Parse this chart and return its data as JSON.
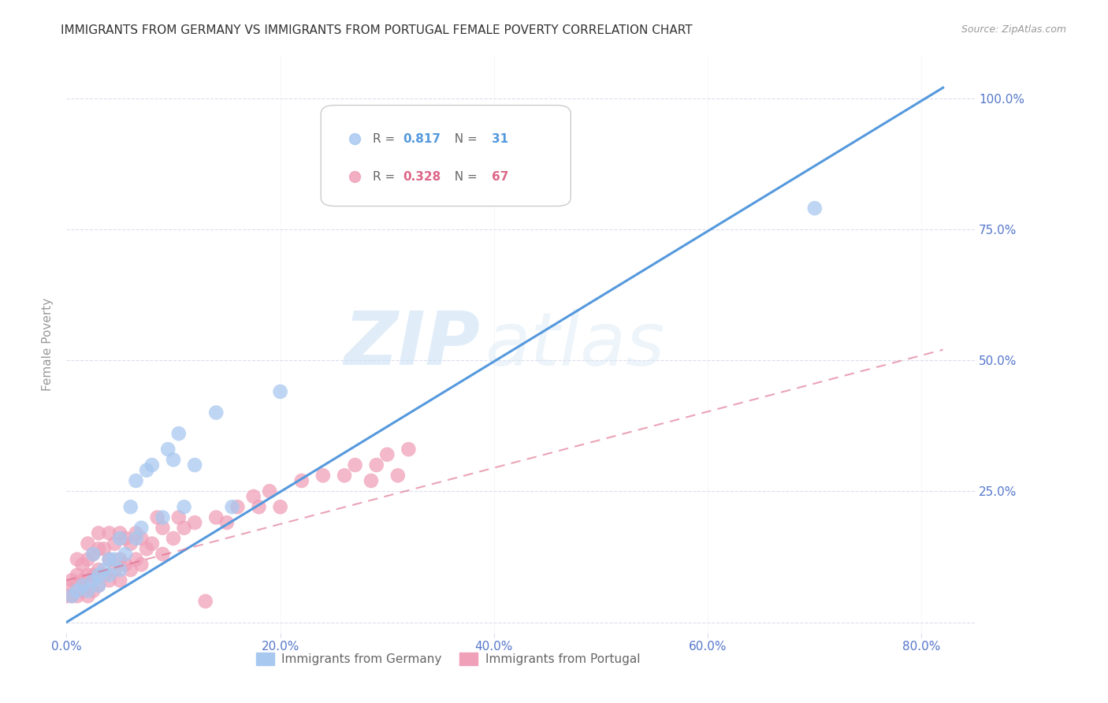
{
  "title": "IMMIGRANTS FROM GERMANY VS IMMIGRANTS FROM PORTUGAL FEMALE POVERTY CORRELATION CHART",
  "source": "Source: ZipAtlas.com",
  "ylabel_label": "Female Poverty",
  "xlim": [
    0.0,
    0.85
  ],
  "ylim": [
    -0.02,
    1.08
  ],
  "legend1_R": "0.817",
  "legend1_N": "31",
  "legend2_R": "0.328",
  "legend2_N": "67",
  "germany_color": "#a8c8f0",
  "portugal_color": "#f0a0b8",
  "germany_line_color": "#5599dd",
  "portugal_line_color": "#dd6688",
  "watermark_zip": "ZIP",
  "watermark_atlas": "atlas",
  "background_color": "#ffffff",
  "grid_color": "#ddddee",
  "tick_color": "#5577cc",
  "title_color": "#333333",
  "source_color": "#999999",
  "ylabel_color": "#999999",
  "germany_scatter_x": [
    0.005,
    0.01,
    0.015,
    0.02,
    0.025,
    0.025,
    0.03,
    0.03,
    0.035,
    0.04,
    0.04,
    0.045,
    0.05,
    0.05,
    0.055,
    0.06,
    0.065,
    0.065,
    0.07,
    0.075,
    0.08,
    0.09,
    0.095,
    0.1,
    0.105,
    0.11,
    0.12,
    0.14,
    0.155,
    0.2,
    0.7
  ],
  "germany_scatter_y": [
    0.05,
    0.06,
    0.07,
    0.06,
    0.08,
    0.13,
    0.07,
    0.09,
    0.1,
    0.09,
    0.12,
    0.12,
    0.1,
    0.16,
    0.13,
    0.22,
    0.16,
    0.27,
    0.18,
    0.29,
    0.3,
    0.2,
    0.33,
    0.31,
    0.36,
    0.22,
    0.3,
    0.4,
    0.22,
    0.44,
    0.79
  ],
  "portugal_scatter_x": [
    0.0,
    0.0,
    0.005,
    0.005,
    0.01,
    0.01,
    0.01,
    0.01,
    0.015,
    0.015,
    0.015,
    0.02,
    0.02,
    0.02,
    0.02,
    0.02,
    0.025,
    0.025,
    0.025,
    0.03,
    0.03,
    0.03,
    0.03,
    0.035,
    0.035,
    0.04,
    0.04,
    0.04,
    0.045,
    0.045,
    0.05,
    0.05,
    0.05,
    0.055,
    0.055,
    0.06,
    0.06,
    0.065,
    0.065,
    0.07,
    0.07,
    0.075,
    0.08,
    0.085,
    0.09,
    0.09,
    0.1,
    0.105,
    0.11,
    0.12,
    0.13,
    0.14,
    0.15,
    0.16,
    0.175,
    0.18,
    0.19,
    0.2,
    0.22,
    0.24,
    0.26,
    0.27,
    0.285,
    0.29,
    0.3,
    0.31,
    0.32
  ],
  "portugal_scatter_y": [
    0.05,
    0.07,
    0.05,
    0.08,
    0.05,
    0.07,
    0.09,
    0.12,
    0.06,
    0.08,
    0.11,
    0.05,
    0.07,
    0.09,
    0.12,
    0.15,
    0.06,
    0.09,
    0.13,
    0.07,
    0.1,
    0.14,
    0.17,
    0.09,
    0.14,
    0.08,
    0.12,
    0.17,
    0.1,
    0.15,
    0.08,
    0.12,
    0.17,
    0.11,
    0.16,
    0.1,
    0.15,
    0.12,
    0.17,
    0.11,
    0.16,
    0.14,
    0.15,
    0.2,
    0.13,
    0.18,
    0.16,
    0.2,
    0.18,
    0.19,
    0.04,
    0.2,
    0.19,
    0.22,
    0.24,
    0.22,
    0.25,
    0.22,
    0.27,
    0.28,
    0.28,
    0.3,
    0.27,
    0.3,
    0.32,
    0.28,
    0.33
  ],
  "germany_trend_x": [
    0.0,
    0.82
  ],
  "germany_trend_y": [
    0.0,
    1.02
  ],
  "portugal_trend_x": [
    0.0,
    0.82
  ],
  "portugal_trend_y": [
    0.08,
    0.52
  ],
  "xticks": [
    0.0,
    0.2,
    0.4,
    0.6,
    0.8
  ],
  "xticklabels": [
    "0.0%",
    "20.0%",
    "40.0%",
    "60.0%",
    "80.0%"
  ],
  "yticks": [
    0.0,
    0.25,
    0.5,
    0.75,
    1.0
  ],
  "yticklabels": [
    "",
    "25.0%",
    "50.0%",
    "75.0%",
    "100.0%"
  ]
}
